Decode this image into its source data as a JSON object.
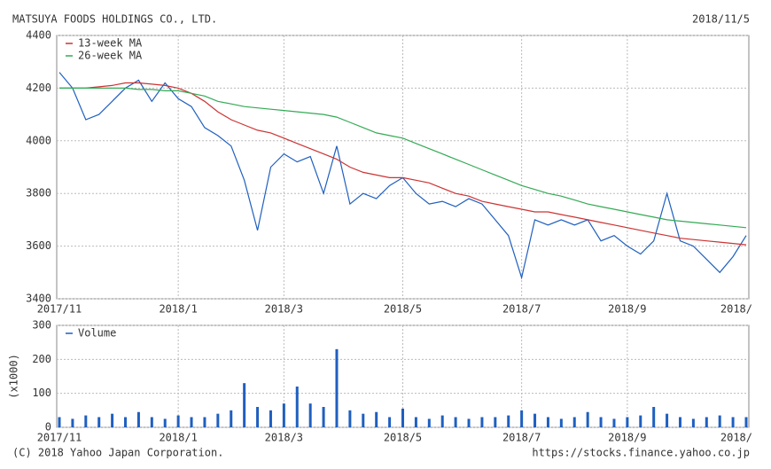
{
  "header": {
    "title": "MATSUYA FOODS HOLDINGS CO., LTD.",
    "date": "2018/11/5"
  },
  "footer": {
    "copyright": "(C) 2018 Yahoo Japan Corporation.",
    "url": "https://stocks.finance.yahoo.co.jp"
  },
  "chart_data": [
    {
      "type": "line",
      "categories": [
        "2017/11",
        null,
        null,
        null,
        null,
        null,
        null,
        null,
        null,
        "2018/1",
        null,
        null,
        null,
        null,
        null,
        null,
        null,
        "2018/3",
        null,
        null,
        null,
        null,
        null,
        null,
        null,
        null,
        "2018/5",
        null,
        null,
        null,
        null,
        null,
        null,
        null,
        null,
        "2018/7",
        null,
        null,
        null,
        null,
        null,
        null,
        null,
        "2018/9",
        null,
        null,
        null,
        null,
        null,
        null,
        null,
        null,
        "2018/"
      ],
      "ylim": [
        3400,
        4400
      ],
      "yticks": [
        3400,
        3600,
        3800,
        4000,
        4200,
        4400
      ],
      "grid": true,
      "legend": "upper left",
      "series": [
        {
          "color": "#1f5fbf",
          "values": [
            4260,
            4200,
            4080,
            4100,
            4150,
            4200,
            4230,
            4150,
            4220,
            4160,
            4130,
            4050,
            4020,
            3980,
            3850,
            3660,
            3900,
            3950,
            3920,
            3940,
            3800,
            3980,
            3760,
            3800,
            3780,
            3830,
            3860,
            3800,
            3760,
            3770,
            3750,
            3780,
            3760,
            3700,
            3640,
            3480,
            3700,
            3680,
            3700,
            3680,
            3700,
            3620,
            3640,
            3600,
            3570,
            3620,
            3800,
            3620,
            3600,
            3550,
            3500,
            3560,
            3640
          ]
        },
        {
          "name": "13-week MA",
          "color": "#cc3333",
          "values": [
            4200,
            4200,
            4200,
            4205,
            4210,
            4220,
            4220,
            4215,
            4210,
            4200,
            4180,
            4150,
            4110,
            4080,
            4060,
            4040,
            4030,
            4010,
            3990,
            3970,
            3950,
            3930,
            3900,
            3880,
            3870,
            3860,
            3860,
            3850,
            3840,
            3820,
            3800,
            3790,
            3770,
            3760,
            3750,
            3740,
            3730,
            3730,
            3720,
            3710,
            3700,
            3690,
            3680,
            3670,
            3660,
            3650,
            3640,
            3630,
            3625,
            3620,
            3615,
            3610,
            3605
          ]
        },
        {
          "name": "26-week MA",
          "color": "#33aa55",
          "values": [
            4200,
            4200,
            4200,
            4200,
            4200,
            4200,
            4195,
            4195,
            4190,
            4190,
            4180,
            4170,
            4150,
            4140,
            4130,
            4125,
            4120,
            4115,
            4110,
            4105,
            4100,
            4090,
            4070,
            4050,
            4030,
            4020,
            4010,
            3990,
            3970,
            3950,
            3930,
            3910,
            3890,
            3870,
            3850,
            3830,
            3815,
            3800,
            3790,
            3775,
            3760,
            3750,
            3740,
            3730,
            3720,
            3710,
            3700,
            3695,
            3690,
            3685,
            3680,
            3675,
            3670
          ]
        }
      ]
    },
    {
      "type": "bar",
      "ylabel": "(x1000)",
      "categories": [
        "2017/11",
        null,
        null,
        null,
        null,
        null,
        null,
        null,
        null,
        "2018/1",
        null,
        null,
        null,
        null,
        null,
        null,
        null,
        "2018/3",
        null,
        null,
        null,
        null,
        null,
        null,
        null,
        null,
        "2018/5",
        null,
        null,
        null,
        null,
        null,
        null,
        null,
        null,
        "2018/7",
        null,
        null,
        null,
        null,
        null,
        null,
        null,
        "2018/9",
        null,
        null,
        null,
        null,
        null,
        null,
        null,
        null,
        "2018/"
      ],
      "ylim": [
        0,
        300
      ],
      "yticks": [
        0,
        100,
        200,
        300
      ],
      "grid": true,
      "legend": "upper left",
      "series": [
        {
          "name": "Volume",
          "color": "#1f5fbf",
          "values": [
            30,
            25,
            35,
            30,
            40,
            30,
            45,
            30,
            25,
            35,
            30,
            30,
            40,
            50,
            130,
            60,
            50,
            70,
            120,
            70,
            60,
            230,
            50,
            40,
            45,
            30,
            55,
            30,
            25,
            35,
            30,
            25,
            30,
            30,
            35,
            50,
            40,
            30,
            25,
            30,
            45,
            30,
            25,
            30,
            35,
            60,
            40,
            30,
            25,
            30,
            35,
            30,
            30
          ]
        }
      ]
    }
  ]
}
